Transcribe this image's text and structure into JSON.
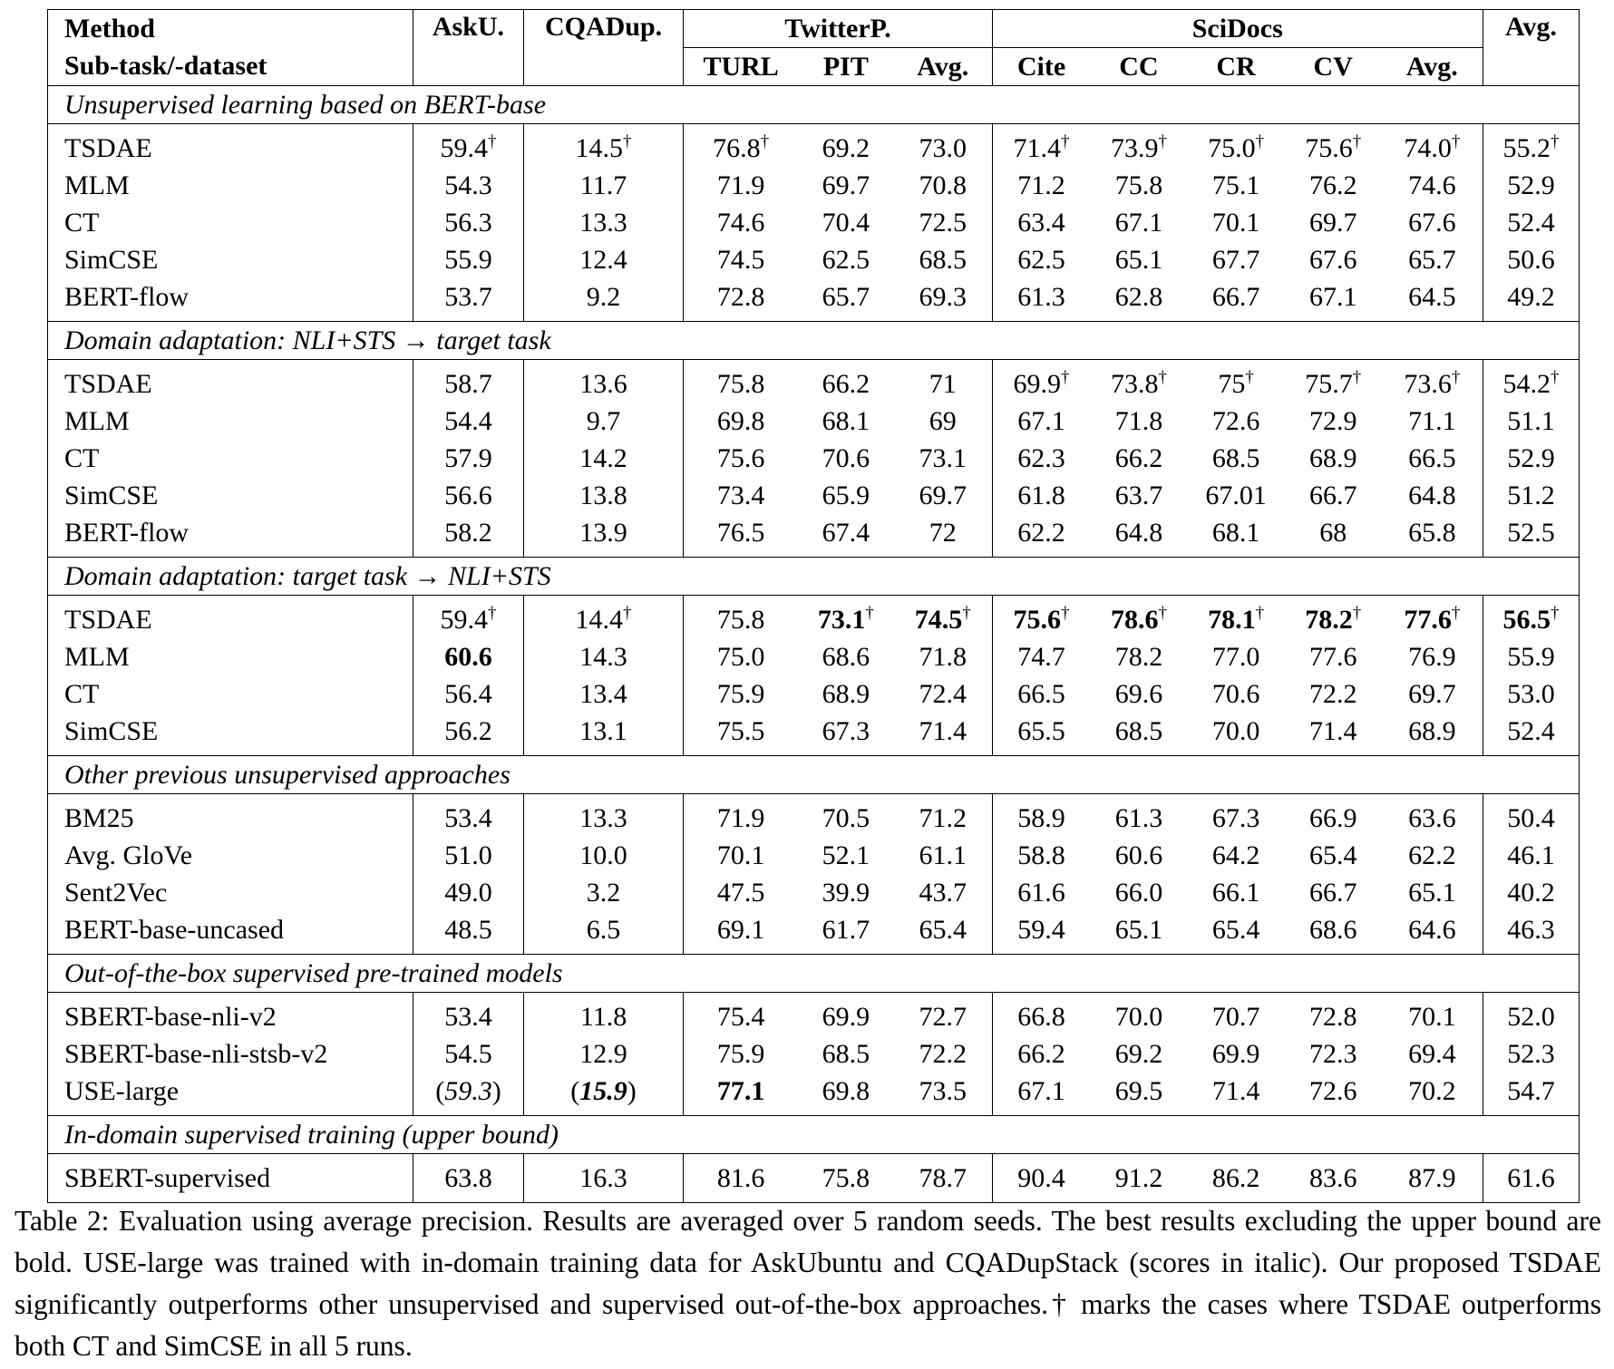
{
  "table": {
    "header": {
      "row1": [
        "Method",
        "AskU.",
        "CQADup.",
        "TwitterP.",
        "SciDocs",
        "Avg."
      ],
      "row2_first": "Sub-task/-dataset",
      "row2_twitter": [
        "TURL",
        "PIT",
        "Avg."
      ],
      "row2_scidocs": [
        "Cite",
        "CC",
        "CR",
        "CV",
        "Avg."
      ]
    },
    "sections": [
      {
        "title": "Unsupervised learning based on BERT-base",
        "rows": [
          {
            "method": "TSDAE",
            "cells": [
              {
                "v": "59.4",
                "d": true
              },
              {
                "v": "14.5",
                "d": true
              },
              {
                "v": "76.8",
                "d": true
              },
              {
                "v": "69.2"
              },
              {
                "v": "73.0"
              },
              {
                "v": "71.4",
                "d": true
              },
              {
                "v": "73.9",
                "d": true
              },
              {
                "v": "75.0",
                "d": true
              },
              {
                "v": "75.6",
                "d": true
              },
              {
                "v": "74.0",
                "d": true
              },
              {
                "v": "55.2",
                "d": true
              }
            ]
          },
          {
            "method": "MLM",
            "cells": [
              {
                "v": "54.3"
              },
              {
                "v": "11.7"
              },
              {
                "v": "71.9"
              },
              {
                "v": "69.7"
              },
              {
                "v": "70.8"
              },
              {
                "v": "71.2"
              },
              {
                "v": "75.8"
              },
              {
                "v": "75.1"
              },
              {
                "v": "76.2"
              },
              {
                "v": "74.6"
              },
              {
                "v": "52.9"
              }
            ]
          },
          {
            "method": "CT",
            "cells": [
              {
                "v": "56.3"
              },
              {
                "v": "13.3"
              },
              {
                "v": "74.6"
              },
              {
                "v": "70.4"
              },
              {
                "v": "72.5"
              },
              {
                "v": "63.4"
              },
              {
                "v": "67.1"
              },
              {
                "v": "70.1"
              },
              {
                "v": "69.7"
              },
              {
                "v": "67.6"
              },
              {
                "v": "52.4"
              }
            ]
          },
          {
            "method": "SimCSE",
            "cells": [
              {
                "v": "55.9"
              },
              {
                "v": "12.4"
              },
              {
                "v": "74.5"
              },
              {
                "v": "62.5"
              },
              {
                "v": "68.5"
              },
              {
                "v": "62.5"
              },
              {
                "v": "65.1"
              },
              {
                "v": "67.7"
              },
              {
                "v": "67.6"
              },
              {
                "v": "65.7"
              },
              {
                "v": "50.6"
              }
            ]
          },
          {
            "method": "BERT-flow",
            "cells": [
              {
                "v": "53.7"
              },
              {
                "v": "9.2"
              },
              {
                "v": "72.8"
              },
              {
                "v": "65.7"
              },
              {
                "v": "69.3"
              },
              {
                "v": "61.3"
              },
              {
                "v": "62.8"
              },
              {
                "v": "66.7"
              },
              {
                "v": "67.1"
              },
              {
                "v": "64.5"
              },
              {
                "v": "49.2"
              }
            ]
          }
        ]
      },
      {
        "title": "Domain adaptation: NLI+STS → target task",
        "rows": [
          {
            "method": "TSDAE",
            "cells": [
              {
                "v": "58.7"
              },
              {
                "v": "13.6"
              },
              {
                "v": "75.8"
              },
              {
                "v": "66.2"
              },
              {
                "v": "71"
              },
              {
                "v": "69.9",
                "d": true
              },
              {
                "v": "73.8",
                "d": true
              },
              {
                "v": "75",
                "d": true
              },
              {
                "v": "75.7",
                "d": true
              },
              {
                "v": "73.6",
                "d": true
              },
              {
                "v": "54.2",
                "d": true
              }
            ]
          },
          {
            "method": "MLM",
            "cells": [
              {
                "v": "54.4"
              },
              {
                "v": "9.7"
              },
              {
                "v": "69.8"
              },
              {
                "v": "68.1"
              },
              {
                "v": "69"
              },
              {
                "v": "67.1"
              },
              {
                "v": "71.8"
              },
              {
                "v": "72.6"
              },
              {
                "v": "72.9"
              },
              {
                "v": "71.1"
              },
              {
                "v": "51.1"
              }
            ]
          },
          {
            "method": "CT",
            "cells": [
              {
                "v": "57.9"
              },
              {
                "v": "14.2"
              },
              {
                "v": "75.6"
              },
              {
                "v": "70.6"
              },
              {
                "v": "73.1"
              },
              {
                "v": "62.3"
              },
              {
                "v": "66.2"
              },
              {
                "v": "68.5"
              },
              {
                "v": "68.9"
              },
              {
                "v": "66.5"
              },
              {
                "v": "52.9"
              }
            ]
          },
          {
            "method": "SimCSE",
            "cells": [
              {
                "v": "56.6"
              },
              {
                "v": "13.8"
              },
              {
                "v": "73.4"
              },
              {
                "v": "65.9"
              },
              {
                "v": "69.7"
              },
              {
                "v": "61.8"
              },
              {
                "v": "63.7"
              },
              {
                "v": "67.01"
              },
              {
                "v": "66.7"
              },
              {
                "v": "64.8"
              },
              {
                "v": "51.2"
              }
            ]
          },
          {
            "method": "BERT-flow",
            "cells": [
              {
                "v": "58.2"
              },
              {
                "v": "13.9"
              },
              {
                "v": "76.5"
              },
              {
                "v": "67.4"
              },
              {
                "v": "72"
              },
              {
                "v": "62.2"
              },
              {
                "v": "64.8"
              },
              {
                "v": "68.1"
              },
              {
                "v": "68"
              },
              {
                "v": "65.8"
              },
              {
                "v": "52.5"
              }
            ]
          }
        ]
      },
      {
        "title": "Domain adaptation: target task → NLI+STS",
        "rows": [
          {
            "method": "TSDAE",
            "cells": [
              {
                "v": "59.4",
                "d": true
              },
              {
                "v": "14.4",
                "d": true
              },
              {
                "v": "75.8"
              },
              {
                "v": "73.1",
                "d": true,
                "b": true
              },
              {
                "v": "74.5",
                "d": true,
                "b": true
              },
              {
                "v": "75.6",
                "d": true,
                "b": true
              },
              {
                "v": "78.6",
                "d": true,
                "b": true
              },
              {
                "v": "78.1",
                "d": true,
                "b": true
              },
              {
                "v": "78.2",
                "d": true,
                "b": true
              },
              {
                "v": "77.6",
                "d": true,
                "b": true
              },
              {
                "v": "56.5",
                "d": true,
                "b": true
              }
            ]
          },
          {
            "method": "MLM",
            "cells": [
              {
                "v": "60.6",
                "b": true
              },
              {
                "v": "14.3"
              },
              {
                "v": "75.0"
              },
              {
                "v": "68.6"
              },
              {
                "v": "71.8"
              },
              {
                "v": "74.7"
              },
              {
                "v": "78.2"
              },
              {
                "v": "77.0"
              },
              {
                "v": "77.6"
              },
              {
                "v": "76.9"
              },
              {
                "v": "55.9"
              }
            ]
          },
          {
            "method": "CT",
            "cells": [
              {
                "v": "56.4"
              },
              {
                "v": "13.4"
              },
              {
                "v": "75.9"
              },
              {
                "v": "68.9"
              },
              {
                "v": "72.4"
              },
              {
                "v": "66.5"
              },
              {
                "v": "69.6"
              },
              {
                "v": "70.6"
              },
              {
                "v": "72.2"
              },
              {
                "v": "69.7"
              },
              {
                "v": "53.0"
              }
            ]
          },
          {
            "method": "SimCSE",
            "cells": [
              {
                "v": "56.2"
              },
              {
                "v": "13.1"
              },
              {
                "v": "75.5"
              },
              {
                "v": "67.3"
              },
              {
                "v": "71.4"
              },
              {
                "v": "65.5"
              },
              {
                "v": "68.5"
              },
              {
                "v": "70.0"
              },
              {
                "v": "71.4"
              },
              {
                "v": "68.9"
              },
              {
                "v": "52.4"
              }
            ]
          }
        ]
      },
      {
        "title": "Other previous unsupervised approaches",
        "rows": [
          {
            "method": "BM25",
            "cells": [
              {
                "v": "53.4"
              },
              {
                "v": "13.3"
              },
              {
                "v": "71.9"
              },
              {
                "v": "70.5"
              },
              {
                "v": "71.2"
              },
              {
                "v": "58.9"
              },
              {
                "v": "61.3"
              },
              {
                "v": "67.3"
              },
              {
                "v": "66.9"
              },
              {
                "v": "63.6"
              },
              {
                "v": "50.4"
              }
            ]
          },
          {
            "method": "Avg. GloVe",
            "cells": [
              {
                "v": "51.0"
              },
              {
                "v": "10.0"
              },
              {
                "v": "70.1"
              },
              {
                "v": "52.1"
              },
              {
                "v": "61.1"
              },
              {
                "v": "58.8"
              },
              {
                "v": "60.6"
              },
              {
                "v": "64.2"
              },
              {
                "v": "65.4"
              },
              {
                "v": "62.2"
              },
              {
                "v": "46.1"
              }
            ]
          },
          {
            "method": "Sent2Vec",
            "cells": [
              {
                "v": "49.0"
              },
              {
                "v": "3.2"
              },
              {
                "v": "47.5"
              },
              {
                "v": "39.9"
              },
              {
                "v": "43.7"
              },
              {
                "v": "61.6"
              },
              {
                "v": "66.0"
              },
              {
                "v": "66.1"
              },
              {
                "v": "66.7"
              },
              {
                "v": "65.1"
              },
              {
                "v": "40.2"
              }
            ]
          },
          {
            "method": "BERT-base-uncased",
            "cells": [
              {
                "v": "48.5"
              },
              {
                "v": "6.5"
              },
              {
                "v": "69.1"
              },
              {
                "v": "61.7"
              },
              {
                "v": "65.4"
              },
              {
                "v": "59.4"
              },
              {
                "v": "65.1"
              },
              {
                "v": "65.4"
              },
              {
                "v": "68.6"
              },
              {
                "v": "64.6"
              },
              {
                "v": "46.3"
              }
            ]
          }
        ]
      },
      {
        "title": "Out-of-the-box supervised pre-trained models",
        "rows": [
          {
            "method": "SBERT-base-nli-v2",
            "cells": [
              {
                "v": "53.4"
              },
              {
                "v": "11.8"
              },
              {
                "v": "75.4"
              },
              {
                "v": "69.9"
              },
              {
                "v": "72.7"
              },
              {
                "v": "66.8"
              },
              {
                "v": "70.0"
              },
              {
                "v": "70.7"
              },
              {
                "v": "72.8"
              },
              {
                "v": "70.1"
              },
              {
                "v": "52.0"
              }
            ]
          },
          {
            "method": "SBERT-base-nli-stsb-v2",
            "cells": [
              {
                "v": "54.5"
              },
              {
                "v": "12.9"
              },
              {
                "v": "75.9"
              },
              {
                "v": "68.5"
              },
              {
                "v": "72.2"
              },
              {
                "v": "66.2"
              },
              {
                "v": "69.2"
              },
              {
                "v": "69.9"
              },
              {
                "v": "72.3"
              },
              {
                "v": "69.4"
              },
              {
                "v": "52.3"
              }
            ]
          },
          {
            "method": "USE-large",
            "cells": [
              {
                "v": "59.3",
                "i": true,
                "p": true
              },
              {
                "v": "15.9",
                "i": true,
                "b": true,
                "p": true
              },
              {
                "v": "77.1",
                "b": true
              },
              {
                "v": "69.8"
              },
              {
                "v": "73.5"
              },
              {
                "v": "67.1"
              },
              {
                "v": "69.5"
              },
              {
                "v": "71.4"
              },
              {
                "v": "72.6"
              },
              {
                "v": "70.2"
              },
              {
                "v": "54.7"
              }
            ]
          }
        ]
      },
      {
        "title": "In-domain supervised training (upper bound)",
        "rows": [
          {
            "method": "SBERT-supervised",
            "cells": [
              {
                "v": "63.8"
              },
              {
                "v": "16.3"
              },
              {
                "v": "81.6"
              },
              {
                "v": "75.8"
              },
              {
                "v": "78.7"
              },
              {
                "v": "90.4"
              },
              {
                "v": "91.2"
              },
              {
                "v": "86.2"
              },
              {
                "v": "83.6"
              },
              {
                "v": "87.9"
              },
              {
                "v": "61.6"
              }
            ]
          }
        ]
      }
    ],
    "dagger": "†"
  },
  "caption": {
    "label": "Table 2:",
    "text": "Evaluation using average precision. Results are averaged over 5 random seeds. The best results excluding the upper bound are bold. USE-large was trained with in-domain training data for AskUbuntu and CQADupStack (scores in italic). Our proposed TSDAE significantly outperforms other unsupervised and supervised out-of-the-box approaches.† marks the cases where TSDAE outperforms both CT and SimCSE in all 5 runs."
  }
}
